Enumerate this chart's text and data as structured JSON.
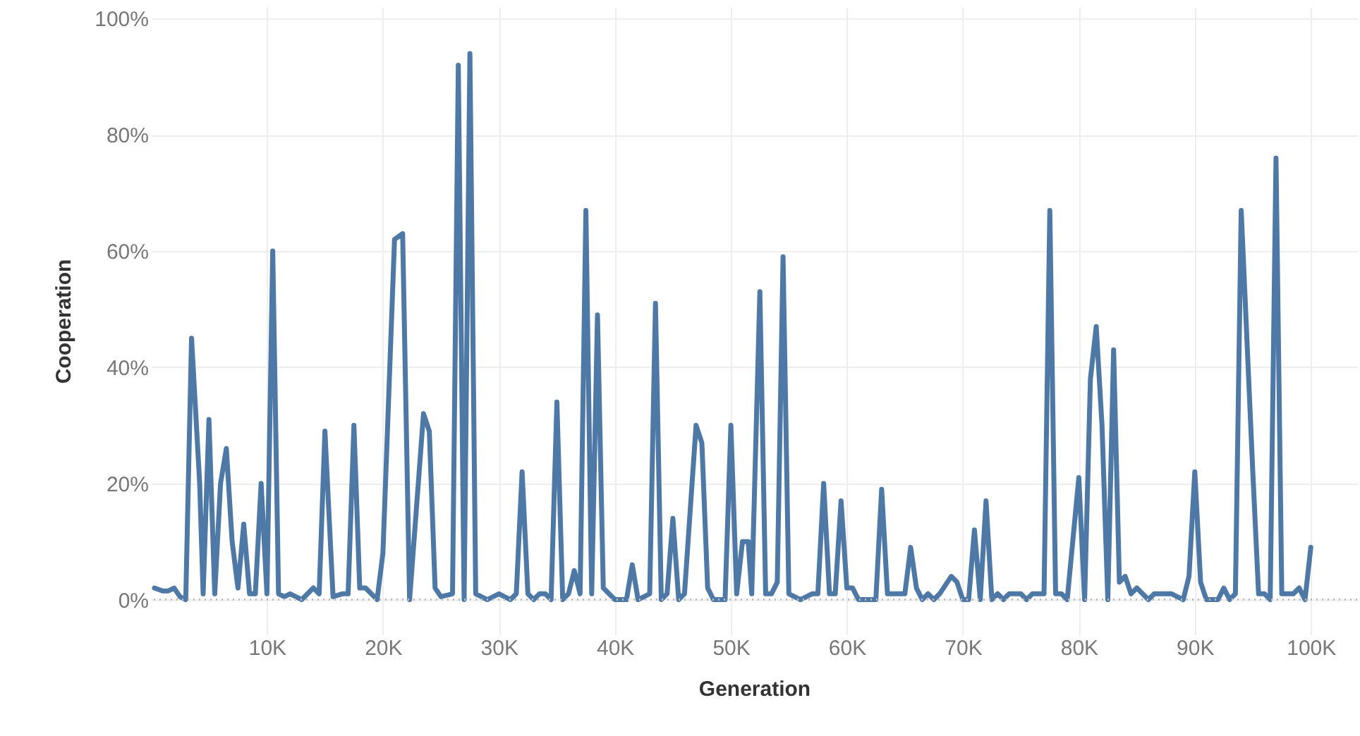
{
  "chart_data": {
    "type": "line",
    "xlabel": "Generation",
    "ylabel": "Cooperation",
    "x": [
      300,
      1000,
      1500,
      2000,
      2500,
      3000,
      3500,
      4200,
      4500,
      5000,
      5500,
      6000,
      6500,
      7000,
      7500,
      8000,
      8500,
      9000,
      9500,
      10000,
      10500,
      11000,
      11500,
      12000,
      13000,
      14000,
      14500,
      15000,
      15700,
      16500,
      17000,
      17500,
      18000,
      18500,
      19000,
      19500,
      20000,
      21000,
      21700,
      22300,
      23500,
      24000,
      24500,
      25000,
      26000,
      26500,
      27000,
      27500,
      28000,
      29000,
      30000,
      31000,
      31500,
      32000,
      32500,
      33000,
      33500,
      34000,
      34500,
      35000,
      35500,
      36000,
      36500,
      37000,
      37500,
      38000,
      38500,
      39000,
      40000,
      41000,
      41500,
      42000,
      43000,
      43500,
      44000,
      44500,
      45000,
      45500,
      46000,
      47000,
      47500,
      48000,
      48500,
      49500,
      50000,
      50500,
      51000,
      51500,
      51800,
      52500,
      53000,
      53500,
      54000,
      54500,
      55000,
      56000,
      57000,
      57500,
      58000,
      58500,
      59000,
      59500,
      60000,
      60500,
      61000,
      62500,
      63000,
      63500,
      64000,
      64500,
      65000,
      65500,
      66000,
      66500,
      67000,
      67500,
      68000,
      69000,
      69500,
      70000,
      70500,
      71000,
      71500,
      72000,
      72500,
      73000,
      73500,
      74000,
      75000,
      75500,
      76000,
      76500,
      77000,
      77500,
      78000,
      78500,
      79000,
      80000,
      80500,
      81000,
      81500,
      82000,
      82500,
      83000,
      83500,
      84000,
      84500,
      85000,
      86000,
      86500,
      87000,
      88000,
      89000,
      89500,
      90000,
      90500,
      91000,
      92000,
      92500,
      93000,
      93500,
      94000,
      95000,
      95500,
      96000,
      96500,
      97000,
      97500,
      98000,
      98500,
      99000,
      99500,
      100000
    ],
    "values": [
      2,
      1.5,
      1.5,
      2,
      0.5,
      0,
      45,
      20,
      1,
      31,
      1,
      20,
      26,
      10,
      2,
      13,
      1,
      1,
      20,
      1,
      60,
      1,
      0.5,
      1,
      0,
      2,
      1,
      29,
      0.5,
      1,
      1,
      30,
      2,
      2,
      1,
      0,
      8,
      62,
      63,
      0,
      32,
      29,
      2,
      0.5,
      1,
      92,
      0,
      94,
      1,
      0,
      1,
      0,
      1,
      22,
      1,
      0,
      1,
      1,
      0,
      34,
      0,
      1,
      5,
      1,
      67,
      1,
      49,
      2,
      0,
      0,
      6,
      0,
      1,
      51,
      0,
      1,
      14,
      0,
      1,
      30,
      27,
      2,
      0,
      0,
      30,
      1,
      10,
      10,
      1,
      53,
      1,
      1,
      3,
      59,
      1,
      0,
      1,
      1,
      20,
      1,
      1,
      17,
      2,
      2,
      0,
      0,
      19,
      1,
      1,
      1,
      1,
      9,
      2,
      0,
      1,
      0,
      1,
      4,
      3,
      0,
      0,
      12,
      0,
      17,
      0,
      1,
      0,
      1,
      1,
      0,
      1,
      1,
      1,
      67,
      1,
      1,
      0,
      21,
      0,
      38,
      47,
      30,
      0,
      43,
      3,
      4,
      1,
      2,
      0,
      1,
      1,
      1,
      0,
      4,
      22,
      3,
      0,
      0,
      2,
      0,
      1,
      67,
      22,
      1,
      1,
      0,
      76,
      1,
      1,
      1,
      2,
      0,
      9
    ],
    "color": "#4e79a7",
    "line_style": "solid",
    "marker": "none",
    "grid": true,
    "xlim": [
      0,
      104000
    ],
    "xticks": [
      {
        "value": 10000,
        "label": "10K"
      },
      {
        "value": 20000,
        "label": "20K"
      },
      {
        "value": 30000,
        "label": "30K"
      },
      {
        "value": 40000,
        "label": "40K"
      },
      {
        "value": 50000,
        "label": "50K"
      },
      {
        "value": 60000,
        "label": "60K"
      },
      {
        "value": 70000,
        "label": "70K"
      },
      {
        "value": 80000,
        "label": "80K"
      },
      {
        "value": 90000,
        "label": "90K"
      },
      {
        "value": 100000,
        "label": "100K"
      }
    ],
    "ylim": [
      -6,
      102
    ],
    "yticks": [
      {
        "value": 0,
        "label": "0%"
      },
      {
        "value": 20,
        "label": "20%"
      },
      {
        "value": 40,
        "label": "40%"
      },
      {
        "value": 60,
        "label": "60%"
      },
      {
        "value": 80,
        "label": "80%"
      },
      {
        "value": 100,
        "label": "100%"
      }
    ],
    "ref_lines": [
      {
        "axis": "y",
        "value": 0,
        "line_style": "dotted",
        "color": "#bbbbbb"
      }
    ]
  }
}
